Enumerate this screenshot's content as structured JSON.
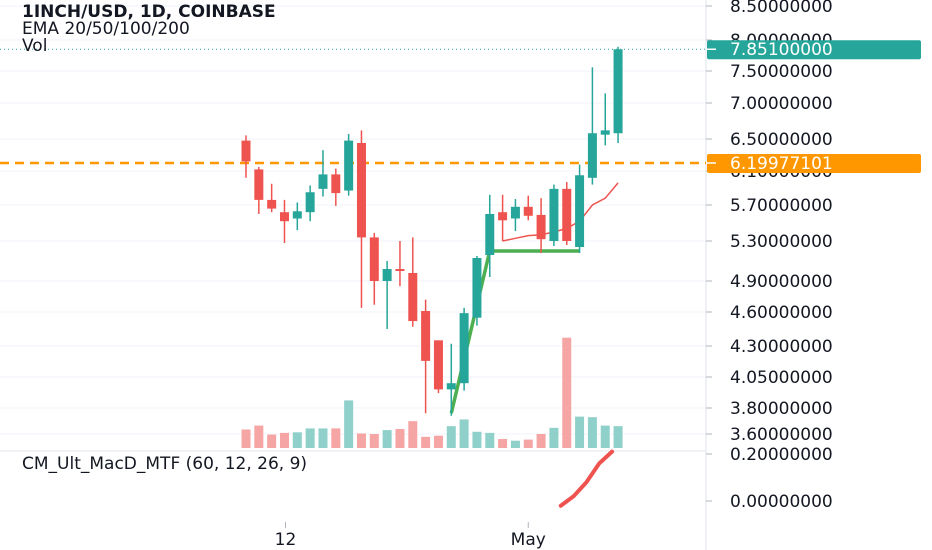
{
  "header": {
    "title": "1INCH/USD, 1D, COINBASE",
    "indicator": "EMA 20/50/100/200",
    "volume_label": "Vol"
  },
  "macd": {
    "label": "CM_Ult_MacD_MTF (60, 12, 26, 9)",
    "ticks": [
      "0.20000000",
      "0.00000000"
    ]
  },
  "price_axis": {
    "ticks": [
      "8.50000000",
      "8.00000000",
      "7.50000000",
      "7.00000000",
      "6.50000000",
      "6.10000000",
      "5.70000000",
      "5.30000000",
      "4.90000000",
      "4.60000000",
      "4.30000000",
      "4.05000000",
      "3.80000000",
      "3.60000000"
    ],
    "last_price_label": "7.85100000",
    "hline_label": "6.19977101"
  },
  "time_axis": {
    "ticks": [
      "12",
      "May"
    ]
  },
  "colors": {
    "up": "#26a69a",
    "down": "#ef5350",
    "up_vol": "#8fd0ca",
    "down_vol": "#f5a5a4",
    "hline": "#ff9800",
    "trend": "#4caf50",
    "ema": "#ef5350"
  },
  "chart_data": {
    "type": "candlestick",
    "symbol": "1INCH/USD",
    "interval": "1D",
    "exchange": "COINBASE",
    "candles": [
      {
        "o": 6.48,
        "h": 6.55,
        "l": 6.02,
        "c": 6.22
      },
      {
        "o": 6.12,
        "h": 6.15,
        "l": 5.6,
        "c": 5.76
      },
      {
        "o": 5.76,
        "h": 5.95,
        "l": 5.62,
        "c": 5.66
      },
      {
        "o": 5.62,
        "h": 5.76,
        "l": 5.28,
        "c": 5.52
      },
      {
        "o": 5.55,
        "h": 5.73,
        "l": 5.42,
        "c": 5.63
      },
      {
        "o": 5.62,
        "h": 5.93,
        "l": 5.52,
        "c": 5.85
      },
      {
        "o": 5.89,
        "h": 6.36,
        "l": 5.8,
        "c": 6.06
      },
      {
        "o": 6.06,
        "h": 6.13,
        "l": 5.69,
        "c": 5.84
      },
      {
        "o": 5.87,
        "h": 6.57,
        "l": 5.81,
        "c": 6.48
      },
      {
        "o": 6.45,
        "h": 6.62,
        "l": 4.64,
        "c": 5.34
      },
      {
        "o": 5.34,
        "h": 5.39,
        "l": 4.67,
        "c": 4.9
      },
      {
        "o": 4.9,
        "h": 5.1,
        "l": 4.45,
        "c": 5.02
      },
      {
        "o": 5.02,
        "h": 5.3,
        "l": 4.85,
        "c": 5.0
      },
      {
        "o": 4.98,
        "h": 5.34,
        "l": 4.47,
        "c": 4.52
      },
      {
        "o": 4.61,
        "h": 4.72,
        "l": 3.76,
        "c": 4.18
      },
      {
        "o": 4.35,
        "h": 4.35,
        "l": 3.92,
        "c": 3.95
      },
      {
        "o": 3.95,
        "h": 4.32,
        "l": 3.74,
        "c": 4.0
      },
      {
        "o": 4.0,
        "h": 4.64,
        "l": 3.94,
        "c": 4.59
      },
      {
        "o": 4.55,
        "h": 5.15,
        "l": 4.48,
        "c": 5.13
      },
      {
        "o": 5.16,
        "h": 5.82,
        "l": 4.94,
        "c": 5.6
      },
      {
        "o": 5.62,
        "h": 5.82,
        "l": 5.3,
        "c": 5.53
      },
      {
        "o": 5.55,
        "h": 5.77,
        "l": 5.41,
        "c": 5.68
      },
      {
        "o": 5.68,
        "h": 5.81,
        "l": 5.53,
        "c": 5.58
      },
      {
        "o": 5.59,
        "h": 5.78,
        "l": 5.18,
        "c": 5.32
      },
      {
        "o": 5.3,
        "h": 5.94,
        "l": 5.25,
        "c": 5.89
      },
      {
        "o": 5.89,
        "h": 5.97,
        "l": 5.26,
        "c": 5.3
      },
      {
        "o": 5.24,
        "h": 6.18,
        "l": 5.18,
        "c": 6.05
      },
      {
        "o": 6.02,
        "h": 7.56,
        "l": 5.94,
        "c": 6.58
      },
      {
        "o": 6.56,
        "h": 7.15,
        "l": 6.42,
        "c": 6.62
      },
      {
        "o": 6.58,
        "h": 7.89,
        "l": 6.45,
        "c": 7.85
      }
    ],
    "volume": [
      33,
      40,
      24,
      27,
      28,
      35,
      35,
      35,
      85,
      26,
      25,
      32,
      34,
      48,
      20,
      22,
      39,
      51,
      29,
      27,
      16,
      13,
      15,
      25,
      36,
      197,
      56,
      55,
      40,
      39
    ],
    "ema": [
      [
        20,
        5.3
      ],
      [
        21,
        5.33
      ],
      [
        22,
        5.36
      ],
      [
        23,
        5.37
      ],
      [
        24,
        5.4
      ],
      [
        25,
        5.44
      ],
      [
        26,
        5.52
      ],
      [
        27,
        5.7
      ],
      [
        28,
        5.78
      ],
      [
        29,
        5.96
      ]
    ],
    "trendline": [
      [
        16,
        3.76
      ],
      [
        19,
        5.2
      ],
      [
        26,
        5.2
      ]
    ],
    "hline": 6.19977101,
    "last_price": 7.851,
    "macd_values": [
      [
        25,
        -0.02
      ],
      [
        26,
        0.02
      ],
      [
        27,
        0.08
      ],
      [
        28,
        0.16
      ],
      [
        29,
        0.21
      ]
    ],
    "xticks": [
      {
        "label": "12",
        "index": 3
      },
      {
        "label": "May",
        "index": 22
      }
    ]
  }
}
